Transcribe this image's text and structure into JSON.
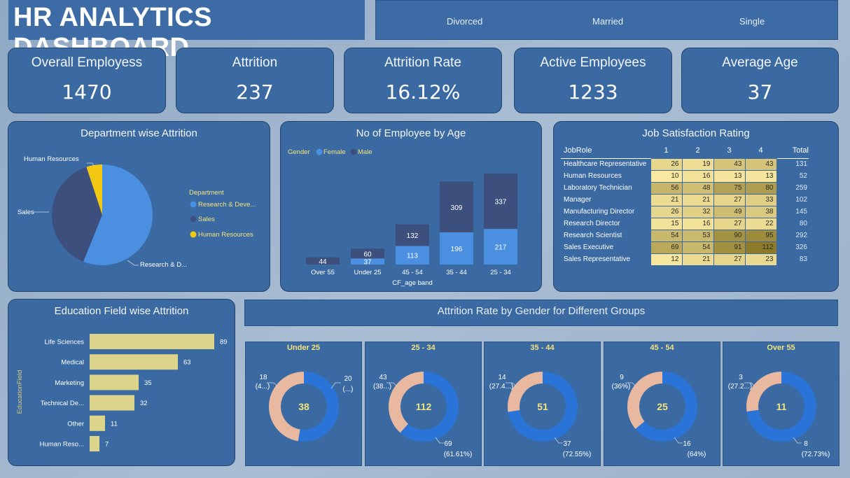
{
  "header": {
    "title": "HR ANALYTICS DASHBOARD"
  },
  "marital_slicer": [
    "Divorced",
    "Married",
    "Single"
  ],
  "kpis": [
    {
      "label": "Overall Employess",
      "value": "1470"
    },
    {
      "label": "Attrition",
      "value": "237"
    },
    {
      "label": "Attrition Rate",
      "value": "16.12%"
    },
    {
      "label": "Active Employees",
      "value": "1233"
    },
    {
      "label": "Average Age",
      "value": "37"
    }
  ],
  "department": {
    "title": "Department wise Attrition",
    "legend_title": "Department",
    "legend": [
      "Research & Deve...",
      "Sales",
      "Human Resources"
    ],
    "labels": {
      "hr": "Human Resources",
      "sales": "Sales",
      "rd": "Research & D..."
    },
    "colors": [
      "#4a8fe0",
      "#3d4f7d",
      "#f2c811"
    ]
  },
  "age": {
    "title": "No of Employee by Age",
    "legend_label": "Gender",
    "legend": [
      "Female",
      "Male"
    ],
    "xlabel": "CF_age band",
    "colors": {
      "female": "#4a8fe0",
      "male": "#3d4f7d"
    }
  },
  "job": {
    "title": "Job Satisfaction Rating",
    "headers": [
      "JobRole",
      "1",
      "2",
      "3",
      "4",
      "Total"
    ],
    "rows": [
      {
        "role": "Healthcare Representative",
        "v": [
          "26",
          "19",
          "43",
          "43"
        ],
        "total": "131"
      },
      {
        "role": "Human Resources",
        "v": [
          "10",
          "16",
          "13",
          "13"
        ],
        "total": "52"
      },
      {
        "role": "Laboratory Technician",
        "v": [
          "56",
          "48",
          "75",
          "80"
        ],
        "total": "259"
      },
      {
        "role": "Manager",
        "v": [
          "21",
          "21",
          "27",
          "33"
        ],
        "total": "102"
      },
      {
        "role": "Manufacturing Director",
        "v": [
          "26",
          "32",
          "49",
          "38"
        ],
        "total": "145"
      },
      {
        "role": "Research Director",
        "v": [
          "15",
          "16",
          "27",
          "22"
        ],
        "total": "80"
      },
      {
        "role": "Research Scientist",
        "v": [
          "54",
          "53",
          "90",
          "95"
        ],
        "total": "292"
      },
      {
        "role": "Sales Executive",
        "v": [
          "69",
          "54",
          "91",
          "112"
        ],
        "total": "326"
      },
      {
        "role": "Sales Representative",
        "v": [
          "12",
          "21",
          "27",
          "23"
        ],
        "total": "83"
      }
    ]
  },
  "education": {
    "title": "Education Field wise Attrition",
    "ylabel": "EducationField",
    "bar_color": "#ddd48c"
  },
  "gender_groups": {
    "title": "Attrition Rate by Gender for Different Groups",
    "colors": {
      "female": "#e8b9a0",
      "male": "#2a74d8"
    }
  },
  "chart_data": [
    {
      "type": "pie",
      "title": "Department wise Attrition",
      "categories": [
        "Research & Development",
        "Sales",
        "Human Resources"
      ],
      "values": [
        133,
        92,
        12
      ],
      "legend": "right"
    },
    {
      "type": "bar",
      "title": "No of Employee by Age",
      "xlabel": "CF_age band",
      "categories": [
        "Over 55",
        "Under 25",
        "45 - 54",
        "35 - 44",
        "25 - 34"
      ],
      "series": [
        {
          "name": "Female",
          "values": [
            null,
            37,
            113,
            196,
            217
          ]
        },
        {
          "name": "Male",
          "values": [
            44,
            60,
            132,
            309,
            337
          ]
        }
      ],
      "stacked": true,
      "legend": "top-left"
    },
    {
      "type": "bar",
      "orientation": "horizontal",
      "title": "Education Field wise Attrition",
      "ylabel": "EducationField",
      "categories": [
        "Life Sciences",
        "Medical",
        "Marketing",
        "Technical De...",
        "Other",
        "Human Reso..."
      ],
      "values": [
        89,
        63,
        35,
        32,
        11,
        7
      ]
    },
    {
      "type": "pie",
      "donut": true,
      "title": "Attrition Rate by Gender for Different Groups",
      "groups": [
        {
          "name": "Under 25",
          "total": "38",
          "female": 18,
          "male": 20,
          "female_label": "(4...)",
          "male_label": "(...)"
        },
        {
          "name": "25 - 34",
          "total": "112",
          "female": 43,
          "male": 69,
          "female_label": "(38...)",
          "male_label": "(61.61%)"
        },
        {
          "name": "35 - 44",
          "total": "51",
          "female": 14,
          "male": 37,
          "female_label": "(27.4...)",
          "male_label": "(72.55%)"
        },
        {
          "name": "45 - 54",
          "total": "25",
          "female": 9,
          "male": 16,
          "female_label": "(36%)",
          "male_label": "(64%)"
        },
        {
          "name": "Over 55",
          "total": "11",
          "female": 3,
          "male": 8,
          "female_label": "(27.2...)",
          "male_label": "(72.73%)"
        }
      ]
    }
  ]
}
